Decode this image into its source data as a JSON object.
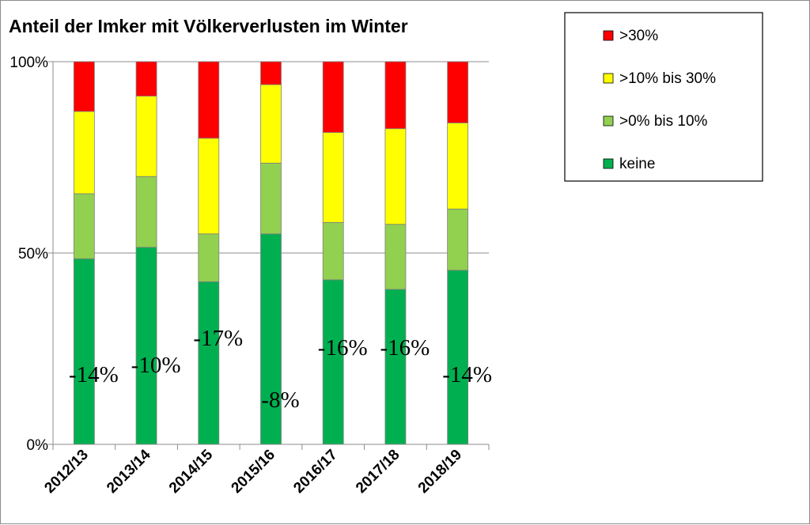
{
  "chart_data": {
    "type": "bar",
    "stacked": true,
    "title": "Anteil der Imker mit Völkerverlusten im Winter",
    "categories": [
      "2012/13",
      "2013/14",
      "2014/15",
      "2015/16",
      "2016/17",
      "2017/18",
      "2018/19"
    ],
    "ylim": [
      0,
      100
    ],
    "yticks": [
      0,
      50,
      100
    ],
    "ytick_labels": [
      "0%",
      "50%",
      "100%"
    ],
    "grid": true,
    "legend_position": "top-right",
    "series": [
      {
        "name": "keine",
        "color": "#00b050",
        "values": [
          48.5,
          51.5,
          42.5,
          55.0,
          43.0,
          40.5,
          45.5
        ]
      },
      {
        "name": ">0% bis 10%",
        "color": "#92d050",
        "values": [
          17.0,
          18.5,
          12.5,
          18.5,
          15.0,
          17.0,
          16.0
        ]
      },
      {
        "name": ">10% bis 30%",
        "color": "#ffff00",
        "values": [
          21.5,
          21.0,
          25.0,
          20.5,
          23.5,
          25.0,
          22.5
        ]
      },
      {
        "name": ">30%",
        "color": "#ff0000",
        "values": [
          13.0,
          9.0,
          20.0,
          6.0,
          18.5,
          17.5,
          16.0
        ]
      }
    ],
    "annotations": [
      "-14%",
      "-10%",
      "-17%",
      "-8%",
      "-16%",
      "-16%",
      "-14%"
    ],
    "annotation_levels": [
      14,
      10,
      17,
      8,
      16,
      16,
      14
    ]
  }
}
